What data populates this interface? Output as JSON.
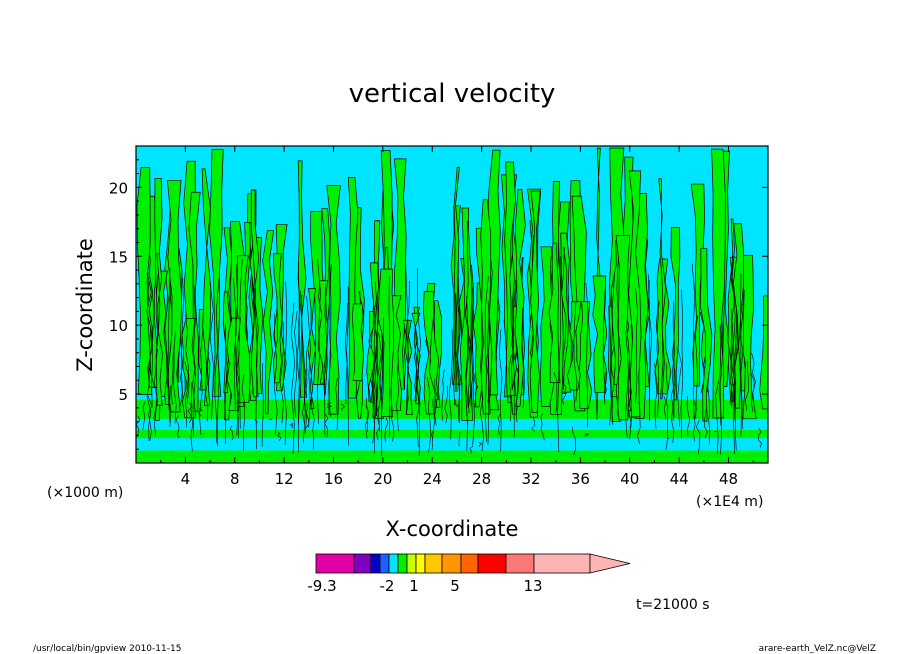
{
  "chart_data": {
    "type": "heatmap",
    "title": "vertical velocity",
    "xlabel": "X-coordinate",
    "ylabel": "Z-coordinate",
    "x_unit_left": "(×1000 m)",
    "x_unit_right": "(×1E4 m)",
    "xlim": [
      0,
      51.2
    ],
    "ylim": [
      0,
      23
    ],
    "x_ticks": [
      "4",
      "8",
      "12",
      "16",
      "20",
      "24",
      "28",
      "32",
      "36",
      "40",
      "44",
      "48"
    ],
    "x_tick_values": [
      4,
      8,
      12,
      16,
      20,
      24,
      28,
      32,
      36,
      40,
      44,
      48
    ],
    "y_ticks": [
      "5",
      "10",
      "15",
      "20"
    ],
    "y_tick_values": [
      5,
      10,
      15,
      20
    ],
    "dominant_fill_colors": [
      "#00e5ff",
      "#00ee00"
    ],
    "contour_line_color": "#000000",
    "colorbar": {
      "colors": [
        "#e000a8",
        "#8000c0",
        "#0000c8",
        "#1e60ff",
        "#00e5ff",
        "#00ee00",
        "#c8ff00",
        "#ffff00",
        "#ffc800",
        "#ff9600",
        "#ff6400",
        "#ff0000",
        "#ff7878",
        "#ffb4b4"
      ],
      "labels": [
        "-9.3",
        "-2",
        "1",
        "5",
        "13"
      ],
      "label_positions": [
        0,
        4,
        6,
        9,
        12
      ]
    },
    "time_label": "t=21000 s"
  },
  "footer": {
    "left": "/usr/local/bin/gpview  2010-11-15",
    "right": "arare-earth_VelZ.nc@VelZ"
  }
}
